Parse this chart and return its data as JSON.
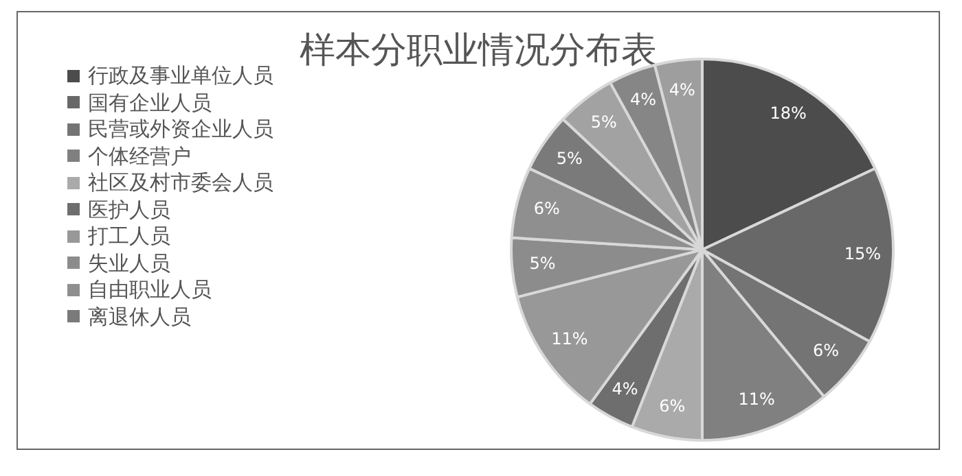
{
  "chart_data": {
    "type": "pie",
    "title": "样本分职业情况分布表",
    "categories": [
      "行政及事业单位人员",
      "国有企业人员",
      "民营或外资企业人员",
      "个体经营户",
      "社区及村市委会人员",
      "医护人员",
      "打工人员",
      "失业人员",
      "自由职业人员",
      "离退休人员",
      null,
      null,
      null
    ],
    "values": [
      18,
      15,
      6,
      11,
      6,
      4,
      11,
      5,
      6,
      5,
      5,
      4,
      4
    ],
    "value_labels": [
      "18%",
      "15%",
      "6%",
      "11%",
      "6%",
      "4%",
      "11%",
      "5%",
      "6%",
      "5%",
      "5%",
      "4%",
      "4%"
    ],
    "colors": [
      "#4c4c4c",
      "#686868",
      "#747474",
      "#808080",
      "#aaaaaa",
      "#6e6e6e",
      "#989898",
      "#8c8c8c",
      "#8f8f8f",
      "#7a7a7a",
      "#a2a2a2",
      "#868686",
      "#9e9e9e"
    ],
    "legend": "left"
  }
}
